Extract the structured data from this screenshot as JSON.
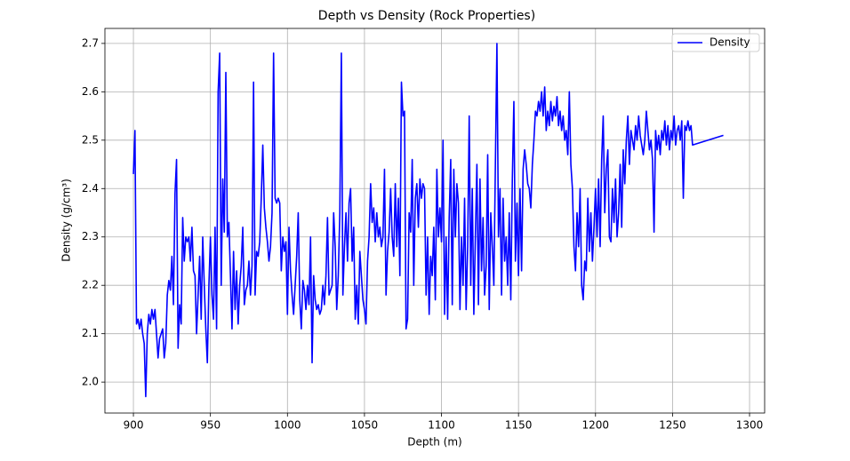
{
  "chart_data": {
    "type": "line",
    "title": "Depth vs Density (Rock Properties)",
    "x_label": "Depth (m)",
    "y_label": "Density (g/cm³)",
    "xlim": [
      881.5,
      1309.8
    ],
    "ylim": [
      1.936,
      2.731
    ],
    "xticks": [
      900,
      950,
      1000,
      1050,
      1100,
      1150,
      1200,
      1250,
      1300
    ],
    "yticks": [
      {
        "value": 2.0,
        "label": "2.0"
      },
      2.1,
      2.2,
      2.3,
      2.4,
      2.5,
      2.6,
      2.7
    ],
    "grid": true,
    "legend": "upper right",
    "x": [
      900,
      901,
      902,
      903,
      904,
      905,
      906,
      907,
      908,
      909,
      910,
      911,
      912,
      913,
      914,
      915,
      916,
      917,
      918,
      919,
      920,
      921,
      922,
      923,
      924,
      925,
      926,
      927,
      928,
      929,
      930,
      931,
      932,
      933,
      934,
      935,
      936,
      937,
      938,
      939,
      940,
      941,
      942,
      943,
      944,
      945,
      946,
      947,
      948,
      949,
      950,
      951,
      952,
      953,
      954,
      955,
      956,
      957,
      958,
      959,
      960,
      961,
      962,
      963,
      964,
      965,
      966,
      967,
      968,
      969,
      970,
      971,
      972,
      973,
      974,
      975,
      976,
      977,
      978,
      979,
      980,
      981,
      982,
      983,
      984,
      985,
      986,
      987,
      988,
      989,
      990,
      991,
      992,
      993,
      994,
      995,
      996,
      997,
      998,
      999,
      1000,
      1001,
      1002,
      1003,
      1004,
      1005,
      1006,
      1007,
      1008,
      1009,
      1010,
      1011,
      1012,
      1013,
      1014,
      1015,
      1016,
      1017,
      1018,
      1019,
      1020,
      1021,
      1022,
      1023,
      1024,
      1025,
      1026,
      1027,
      1029,
      1030,
      1031,
      1032,
      1033,
      1034,
      1035,
      1036,
      1037,
      1038,
      1039,
      1040,
      1041,
      1042,
      1043,
      1044,
      1045,
      1046,
      1047,
      1048,
      1049,
      1050,
      1051,
      1052,
      1053,
      1054,
      1055,
      1056,
      1057,
      1058,
      1059,
      1060,
      1061,
      1062,
      1063,
      1064,
      1065,
      1066,
      1067,
      1068,
      1069,
      1070,
      1071,
      1072,
      1073,
      1074,
      1075,
      1076,
      1077,
      1078,
      1079,
      1080,
      1081,
      1082,
      1083,
      1084,
      1085,
      1086,
      1087,
      1088,
      1089,
      1090,
      1091,
      1092,
      1093,
      1094,
      1095,
      1096,
      1097,
      1098,
      1099,
      1100,
      1101,
      1102,
      1103,
      1104,
      1105,
      1106,
      1107,
      1108,
      1109,
      1110,
      1111,
      1112,
      1113,
      1114,
      1115,
      1116,
      1117,
      1118,
      1119,
      1120,
      1121,
      1122,
      1123,
      1124,
      1125,
      1126,
      1127,
      1128,
      1129,
      1130,
      1131,
      1132,
      1133,
      1134,
      1135,
      1136,
      1137,
      1138,
      1139,
      1140,
      1141,
      1142,
      1143,
      1144,
      1145,
      1146,
      1147,
      1148,
      1149,
      1150,
      1151,
      1152,
      1153,
      1154,
      1155,
      1156,
      1157,
      1158,
      1159,
      1160,
      1161,
      1162,
      1163,
      1164,
      1165,
      1166,
      1167,
      1168,
      1169,
      1170,
      1171,
      1172,
      1173,
      1174,
      1175,
      1176,
      1177,
      1178,
      1179,
      1180,
      1181,
      1182,
      1183,
      1184,
      1185,
      1186,
      1187,
      1188,
      1189,
      1190,
      1191,
      1192,
      1193,
      1194,
      1195,
      1196,
      1197,
      1198,
      1199,
      1200,
      1201,
      1202,
      1203,
      1204,
      1205,
      1206,
      1207,
      1208,
      1209,
      1210,
      1211,
      1212,
      1213,
      1214,
      1215,
      1216,
      1217,
      1218,
      1219,
      1220,
      1221,
      1222,
      1223,
      1224,
      1225,
      1226,
      1227,
      1228,
      1229,
      1230,
      1231,
      1232,
      1233,
      1234,
      1235,
      1236,
      1237,
      1238,
      1239,
      1240,
      1241,
      1242,
      1243,
      1244,
      1245,
      1246,
      1247,
      1248,
      1249,
      1250,
      1251,
      1252,
      1253,
      1254,
      1255,
      1256,
      1257,
      1258,
      1259,
      1260,
      1261,
      1262,
      1263,
      1283
    ],
    "series": [
      {
        "name": "Density",
        "color": "#0000ff",
        "values": [
          2.43,
          2.52,
          2.12,
          2.13,
          2.11,
          2.13,
          2.1,
          2.08,
          1.97,
          2.1,
          2.14,
          2.12,
          2.15,
          2.13,
          2.15,
          2.1,
          2.05,
          2.09,
          2.1,
          2.11,
          2.05,
          2.08,
          2.18,
          2.21,
          2.19,
          2.26,
          2.16,
          2.39,
          2.46,
          2.07,
          2.16,
          2.12,
          2.34,
          2.25,
          2.3,
          2.29,
          2.3,
          2.25,
          2.32,
          2.23,
          2.22,
          2.1,
          2.18,
          2.26,
          2.13,
          2.3,
          2.2,
          2.11,
          2.04,
          2.2,
          2.3,
          2.18,
          2.13,
          2.32,
          2.11,
          2.6,
          2.68,
          2.2,
          2.42,
          2.31,
          2.64,
          2.3,
          2.33,
          2.22,
          2.11,
          2.27,
          2.15,
          2.23,
          2.12,
          2.2,
          2.24,
          2.32,
          2.16,
          2.19,
          2.2,
          2.25,
          2.18,
          2.24,
          2.62,
          2.18,
          2.27,
          2.26,
          2.29,
          2.38,
          2.49,
          2.36,
          2.32,
          2.29,
          2.25,
          2.28,
          2.35,
          2.68,
          2.38,
          2.37,
          2.38,
          2.37,
          2.23,
          2.3,
          2.27,
          2.29,
          2.14,
          2.32,
          2.23,
          2.18,
          2.14,
          2.2,
          2.26,
          2.35,
          2.17,
          2.11,
          2.21,
          2.19,
          2.15,
          2.2,
          2.16,
          2.3,
          2.04,
          2.22,
          2.17,
          2.15,
          2.16,
          2.14,
          2.15,
          2.2,
          2.16,
          2.22,
          2.34,
          2.18,
          2.2,
          2.35,
          2.28,
          2.15,
          2.22,
          2.35,
          2.68,
          2.18,
          2.28,
          2.35,
          2.25,
          2.37,
          2.4,
          2.25,
          2.32,
          2.13,
          2.2,
          2.12,
          2.27,
          2.22,
          2.17,
          2.15,
          2.12,
          2.25,
          2.3,
          2.41,
          2.33,
          2.36,
          2.29,
          2.35,
          2.3,
          2.32,
          2.28,
          2.3,
          2.44,
          2.18,
          2.27,
          2.31,
          2.4,
          2.3,
          2.26,
          2.41,
          2.28,
          2.38,
          2.22,
          2.62,
          2.55,
          2.56,
          2.11,
          2.13,
          2.35,
          2.31,
          2.46,
          2.2,
          2.38,
          2.41,
          2.32,
          2.42,
          2.38,
          2.41,
          2.4,
          2.18,
          2.3,
          2.14,
          2.26,
          2.22,
          2.32,
          2.17,
          2.44,
          2.3,
          2.36,
          2.29,
          2.5,
          2.14,
          2.3,
          2.13,
          2.34,
          2.46,
          2.16,
          2.44,
          2.3,
          2.41,
          2.37,
          2.15,
          2.3,
          2.2,
          2.38,
          2.15,
          2.28,
          2.55,
          2.2,
          2.4,
          2.14,
          2.3,
          2.45,
          2.16,
          2.42,
          2.23,
          2.34,
          2.18,
          2.24,
          2.47,
          2.15,
          2.35,
          2.28,
          2.2,
          2.45,
          2.7,
          2.3,
          2.4,
          2.18,
          2.38,
          2.25,
          2.3,
          2.2,
          2.35,
          2.17,
          2.42,
          2.58,
          2.25,
          2.37,
          2.22,
          2.4,
          2.23,
          2.44,
          2.48,
          2.45,
          2.41,
          2.4,
          2.36,
          2.45,
          2.5,
          2.56,
          2.55,
          2.58,
          2.56,
          2.6,
          2.55,
          2.61,
          2.52,
          2.56,
          2.53,
          2.58,
          2.54,
          2.57,
          2.55,
          2.59,
          2.53,
          2.56,
          2.52,
          2.55,
          2.5,
          2.52,
          2.47,
          2.6,
          2.45,
          2.4,
          2.28,
          2.23,
          2.35,
          2.28,
          2.4,
          2.2,
          2.17,
          2.25,
          2.23,
          2.38,
          2.27,
          2.35,
          2.25,
          2.32,
          2.4,
          2.3,
          2.42,
          2.28,
          2.46,
          2.55,
          2.35,
          2.44,
          2.48,
          2.3,
          2.29,
          2.4,
          2.33,
          2.42,
          2.3,
          2.35,
          2.45,
          2.32,
          2.48,
          2.41,
          2.5,
          2.55,
          2.45,
          2.52,
          2.5,
          2.48,
          2.53,
          2.5,
          2.55,
          2.51,
          2.49,
          2.47,
          2.5,
          2.56,
          2.52,
          2.48,
          2.5,
          2.46,
          2.31,
          2.52,
          2.48,
          2.51,
          2.47,
          2.52,
          2.5,
          2.54,
          2.49,
          2.53,
          2.48,
          2.52,
          2.5,
          2.55,
          2.49,
          2.52,
          2.53,
          2.5,
          2.54,
          2.38,
          2.53,
          2.52,
          2.54,
          2.52,
          2.53,
          2.49,
          2.51
        ]
      }
    ]
  }
}
